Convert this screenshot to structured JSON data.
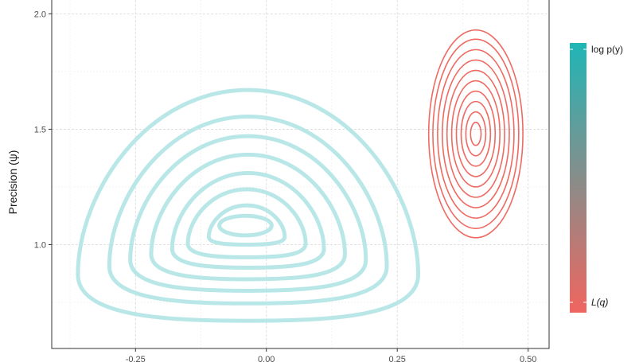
{
  "chart_data": {
    "type": "contour",
    "title": "",
    "xlabel": "",
    "ylabel": "Precision (ψ)",
    "xlim": [
      -0.41,
      0.54
    ],
    "ylim": [
      0.55,
      2.06
    ],
    "x_ticks": [
      -0.25,
      0.0,
      0.25,
      0.5
    ],
    "x_tick_labels": [
      "-0.25",
      "0.00",
      "0.25",
      "0.50"
    ],
    "y_ticks": [
      1.0,
      1.5,
      2.0
    ],
    "y_tick_labels": [
      "1.0",
      "1.5",
      "2.0"
    ],
    "grid": true,
    "legend": {
      "type": "colorbar",
      "placement": "right",
      "top_label": "log p(y)",
      "bottom_label": "L(q)",
      "top_color": "#1fb6b6",
      "bottom_color": "#f0655f"
    },
    "series": [
      {
        "label": "log p(y)",
        "color": "#b9e7e8",
        "center": [
          -0.04,
          1.09
        ],
        "levels": [
          {
            "xmin": -0.36,
            "xmax": 0.29,
            "ymin": 0.67,
            "ymax": 1.67
          },
          {
            "xmin": -0.3,
            "xmax": 0.23,
            "ymin": 0.745,
            "ymax": 1.555
          },
          {
            "xmin": -0.26,
            "xmax": 0.19,
            "ymin": 0.8,
            "ymax": 1.47
          },
          {
            "xmin": -0.22,
            "xmax": 0.15,
            "ymin": 0.85,
            "ymax": 1.39
          },
          {
            "xmin": -0.18,
            "xmax": 0.11,
            "ymin": 0.9,
            "ymax": 1.31
          },
          {
            "xmin": -0.15,
            "xmax": 0.075,
            "ymin": 0.945,
            "ymax": 1.24
          },
          {
            "xmin": -0.11,
            "xmax": 0.035,
            "ymin": 1.0,
            "ymax": 1.17
          },
          {
            "xmin": -0.09,
            "xmax": 0.01,
            "ymin": 1.04,
            "ymax": 1.125
          }
        ]
      },
      {
        "label": "L(q)",
        "color": "#ee6a62",
        "center": [
          0.4,
          1.48
        ],
        "levels": [
          {
            "xmin": 0.31,
            "xmax": 0.49,
            "ymin": 1.03,
            "ymax": 1.93
          },
          {
            "xmin": 0.318,
            "xmax": 0.482,
            "ymin": 1.07,
            "ymax": 1.89
          },
          {
            "xmin": 0.327,
            "xmax": 0.473,
            "ymin": 1.115,
            "ymax": 1.845
          },
          {
            "xmin": 0.336,
            "xmax": 0.464,
            "ymin": 1.16,
            "ymax": 1.8
          },
          {
            "xmin": 0.345,
            "xmax": 0.455,
            "ymin": 1.205,
            "ymax": 1.755
          },
          {
            "xmin": 0.354,
            "xmax": 0.446,
            "ymin": 1.25,
            "ymax": 1.71
          },
          {
            "xmin": 0.363,
            "xmax": 0.437,
            "ymin": 1.295,
            "ymax": 1.665
          },
          {
            "xmin": 0.372,
            "xmax": 0.428,
            "ymin": 1.34,
            "ymax": 1.62
          },
          {
            "xmin": 0.381,
            "xmax": 0.419,
            "ymin": 1.385,
            "ymax": 1.575
          },
          {
            "xmin": 0.39,
            "xmax": 0.41,
            "ymin": 1.43,
            "ymax": 1.53
          }
        ]
      }
    ]
  }
}
